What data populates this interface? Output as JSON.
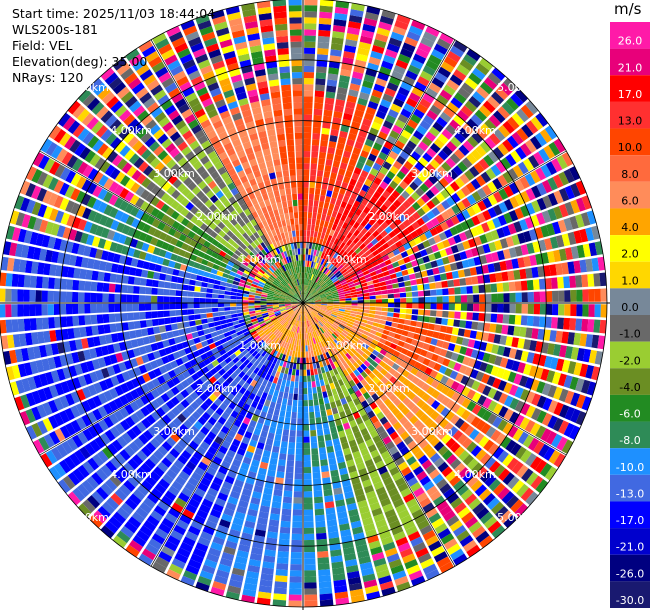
{
  "header": {
    "start_time": "Start time: 2025/11/03 18:44:04",
    "instrument": "WLS200s-181",
    "field": "Field: VEL",
    "elevation": "Elevation(deg): 35.00",
    "nrays": "NRays: 120"
  },
  "chart_data": {
    "type": "heatmap",
    "subtype": "ppi-polar",
    "field": "VEL",
    "units": "m/s",
    "elevation_deg": 35.0,
    "n_rays": 120,
    "range_rings_km": [
      1.0,
      2.0,
      3.0,
      4.0,
      5.0
    ],
    "range_labels": [
      "1.00km",
      "2.00km",
      "3.00km",
      "4.00km",
      "5.00km"
    ],
    "max_range_km": 5.0,
    "azimuth_lines_deg": [
      0,
      30,
      60,
      90,
      120,
      150,
      180,
      210,
      240,
      270,
      300,
      330
    ],
    "colorbar": {
      "label": "m/s",
      "ticks": [
        "26.0",
        "21.0",
        "17.0",
        "13.0",
        "10.0",
        "8.0",
        "6.0",
        "4.0",
        "2.0",
        "1.0",
        "0.0",
        "-1.0",
        "-2.0",
        "-4.0",
        "-6.0",
        "-8.0",
        "-10.0",
        "-13.0",
        "-17.0",
        "-21.0",
        "-26.0",
        "-30.0"
      ],
      "colors": [
        "#ff1aa8",
        "#e8007a",
        "#ff0000",
        "#ff3030",
        "#ff4500",
        "#ff6a3d",
        "#ff8c5a",
        "#ffa500",
        "#ffff00",
        "#ffd700",
        "#778899",
        "#696969",
        "#9acd32",
        "#6b8e23",
        "#228b22",
        "#2e8b57",
        "#1e90ff",
        "#4169e1",
        "#0000ff",
        "#0000cd",
        "#000080",
        "#191970"
      ]
    },
    "field_regions": [
      {
        "az_from": 300,
        "az_to": 330,
        "range_km": [
          1.2,
          3.2
        ],
        "value": -2.0
      },
      {
        "az_from": 330,
        "az_to": 350,
        "range_km": [
          1.0,
          3.4
        ],
        "value": 6.0
      },
      {
        "az_from": 350,
        "az_to": 360,
        "range_km": [
          1.0,
          3.6
        ],
        "value": 8.0
      },
      {
        "az_from": 0,
        "az_to": 20,
        "range_km": [
          1.0,
          3.4
        ],
        "value": 10.0
      },
      {
        "az_from": 20,
        "az_to": 60,
        "range_km": [
          0.8,
          2.4
        ],
        "value": 13.0
      },
      {
        "az_from": 60,
        "az_to": 85,
        "range_km": [
          0.6,
          1.6
        ],
        "value": 17.0
      },
      {
        "az_from": 90,
        "az_to": 150,
        "range_km": [
          0.0,
          1.4
        ],
        "value": 4.0
      },
      {
        "az_from": 100,
        "az_to": 120,
        "range_km": [
          1.4,
          2.5
        ],
        "value": 8.0
      },
      {
        "az_from": 120,
        "az_to": 145,
        "range_km": [
          1.6,
          3.2
        ],
        "value": 4.0
      },
      {
        "az_from": 150,
        "az_to": 240,
        "range_km": [
          0.0,
          0.9
        ],
        "value": 4.0
      },
      {
        "az_from": 150,
        "az_to": 165,
        "range_km": [
          1.2,
          4.2
        ],
        "value": -4.0
      },
      {
        "az_from": 165,
        "az_to": 180,
        "range_km": [
          1.2,
          4.6
        ],
        "value": -10.0
      },
      {
        "az_from": 180,
        "az_to": 200,
        "range_km": [
          1.2,
          4.8
        ],
        "value": -13.0
      },
      {
        "az_from": 200,
        "az_to": 285,
        "range_km": [
          1.0,
          4.8
        ],
        "value": -17.0
      },
      {
        "az_from": 285,
        "az_to": 300,
        "range_km": [
          1.2,
          3.8
        ],
        "value": -10.0
      },
      {
        "az_from": 290,
        "az_to": 305,
        "range_km": [
          1.4,
          3.0
        ],
        "value": -6.0
      },
      {
        "az_from": 270,
        "az_to": 360,
        "range_km": [
          0.0,
          0.75
        ],
        "value": -6.0
      },
      {
        "az_from": 0,
        "az_to": 90,
        "range_km": [
          0.0,
          0.6
        ],
        "value": -6.0
      }
    ]
  }
}
